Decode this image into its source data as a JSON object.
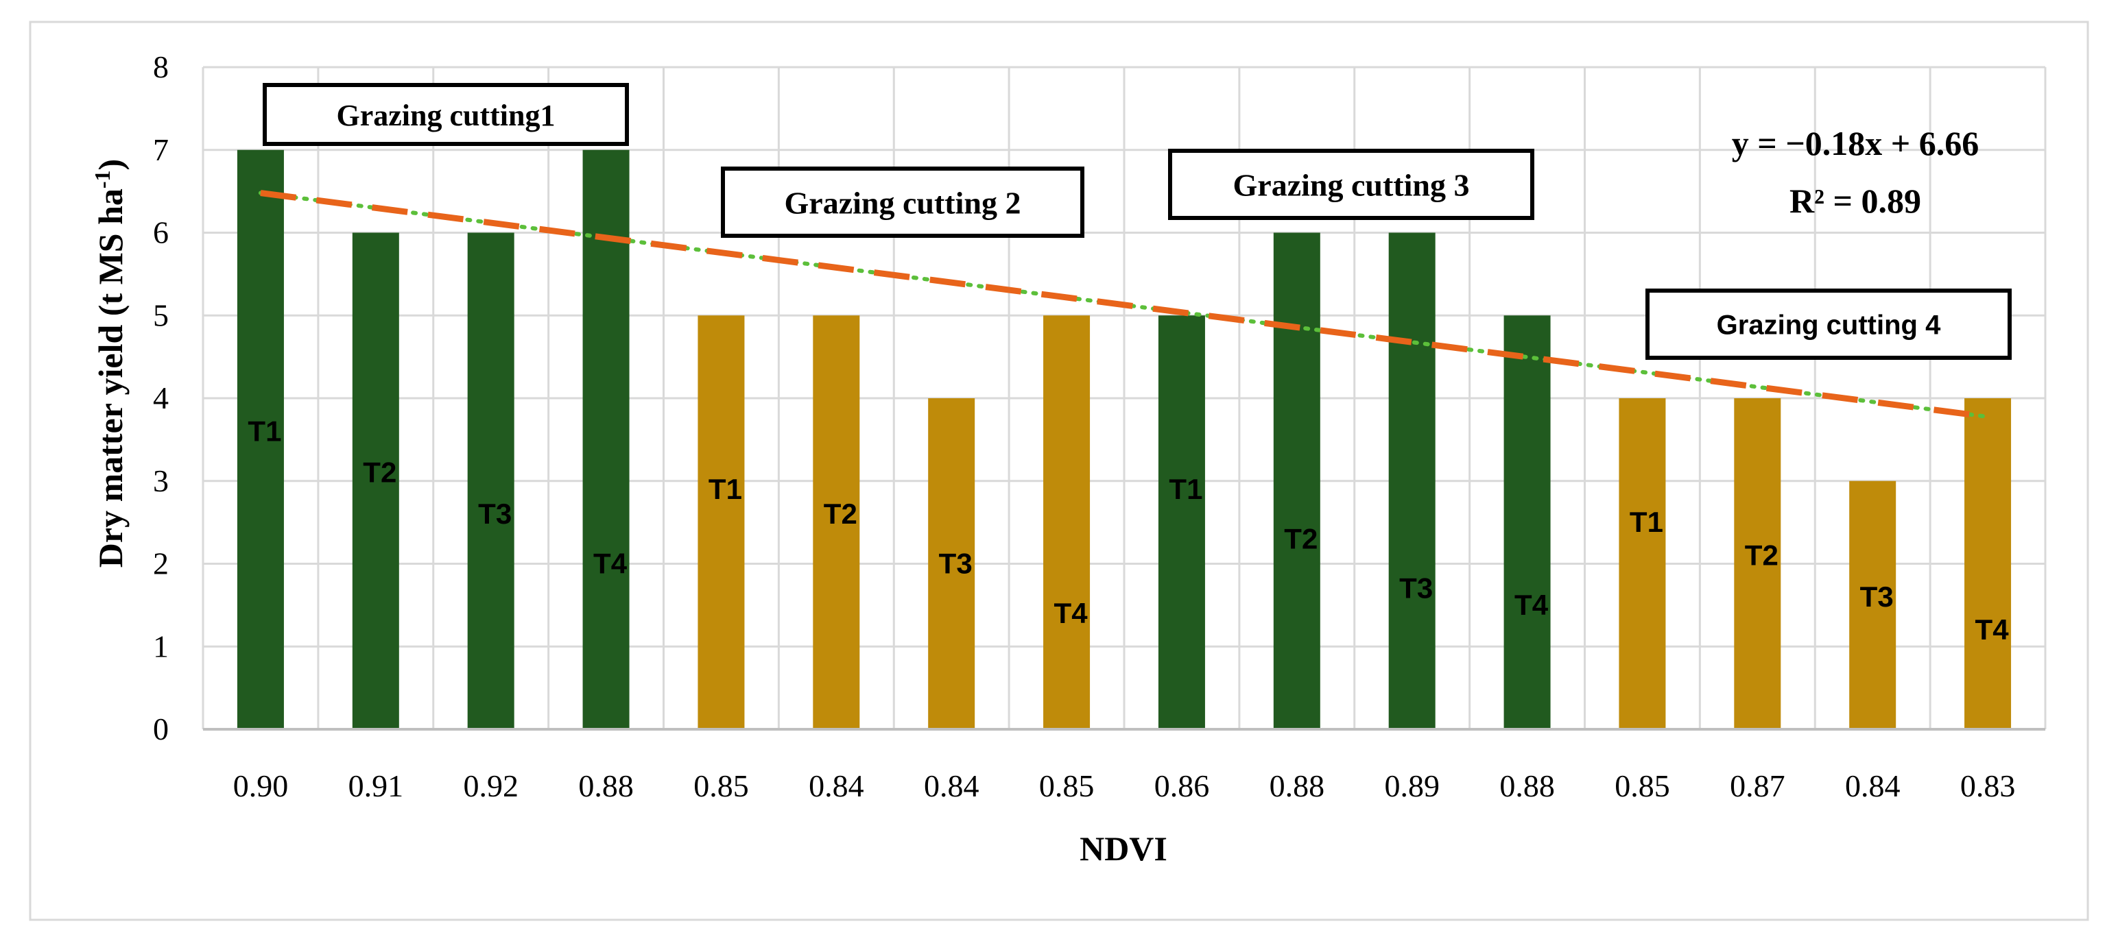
{
  "chart_data": {
    "type": "bar",
    "xlabel": "NDVI",
    "ylabel": "Dry matter yield (t MS ha",
    "ylabel_sup": "-1",
    "ylabel_close": ")",
    "ylim": [
      0,
      8
    ],
    "yticks": [
      "0",
      "1",
      "2",
      "3",
      "4",
      "5",
      "6",
      "7",
      "8"
    ],
    "grid": true,
    "categories": [
      "0.90",
      "0.91",
      "0.92",
      "0.88",
      "0.85",
      "0.84",
      "0.84",
      "0.85",
      "0.86",
      "0.88",
      "0.89",
      "0.88",
      "0.85",
      "0.87",
      "0.84",
      "0.83"
    ],
    "values": [
      7,
      6,
      6,
      7,
      5,
      5,
      4,
      5,
      5,
      6,
      6,
      5,
      4,
      4,
      3,
      4
    ],
    "bar_labels": [
      "T1",
      "T2",
      "T3",
      "T4",
      "T1",
      "T2",
      "T3",
      "T4",
      "T1",
      "T2",
      "T3",
      "T4",
      "T1",
      "T2",
      "T3",
      "T4"
    ],
    "bar_label_y": [
      3.6,
      3.1,
      2.6,
      2.0,
      2.9,
      2.6,
      2.0,
      1.4,
      2.9,
      2.3,
      1.7,
      1.5,
      2.5,
      2.1,
      1.6,
      1.2
    ],
    "groups": [
      {
        "name": "Grazing cutting1",
        "color": "#215a1f"
      },
      {
        "name": "Grazing cutting 2",
        "color": "#bf8b0a"
      },
      {
        "name": "Grazing cutting 3",
        "color": "#215a1f"
      },
      {
        "name": "Grazing cutting 4",
        "color": "#bf8b0a"
      }
    ],
    "trendline": {
      "equation": "y = −0.18x + 6.66",
      "r2": "R² = 0.89",
      "slope": -0.18,
      "intercept": 6.66,
      "color": "#e8641a",
      "dot_color": "#5cbf3a"
    }
  }
}
